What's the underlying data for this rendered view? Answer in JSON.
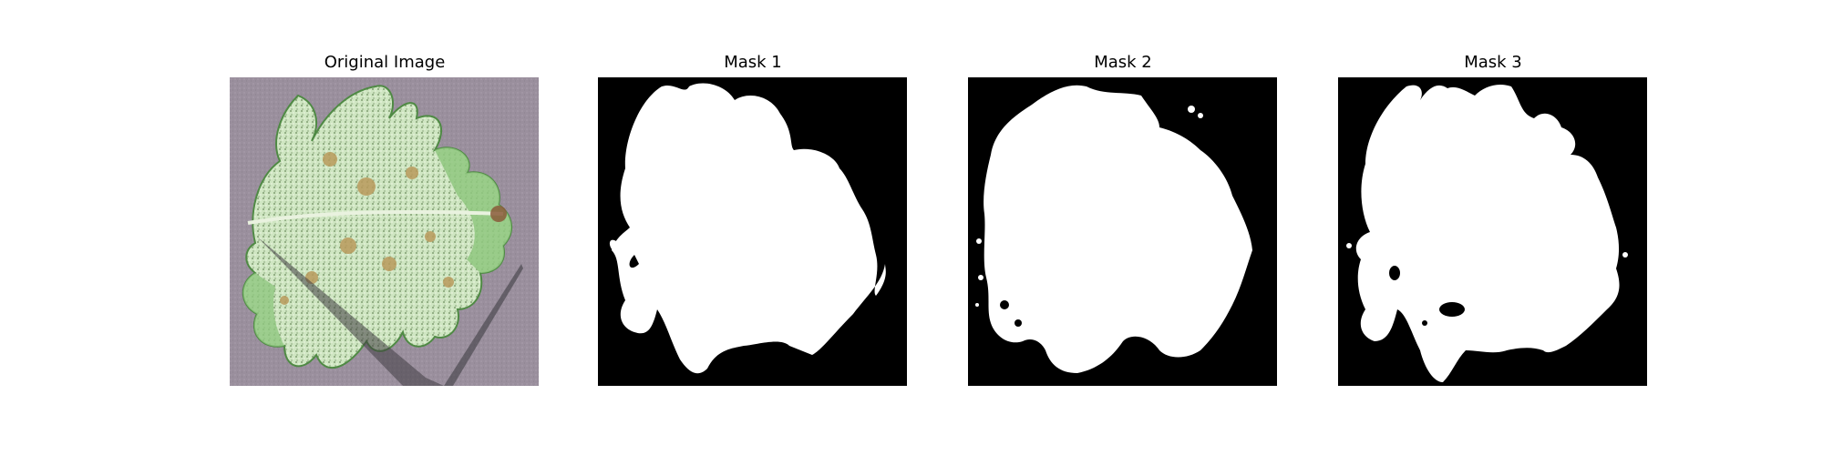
{
  "figure": {
    "panels": [
      {
        "title": "Original Image"
      },
      {
        "title": "Mask 1"
      },
      {
        "title": "Mask 2"
      },
      {
        "title": "Mask 3"
      }
    ]
  },
  "colors": {
    "background": "#ffffff",
    "mask_background": "#000000",
    "mask_foreground": "#ffffff",
    "leaf_surface": "#9a8f9d",
    "leaf_light": "#cfe6c2",
    "leaf_mid": "#8fc77f",
    "leaf_dark": "#5a9a4e",
    "lesion": "#b99a5c",
    "shadow": "#3f3d42"
  }
}
